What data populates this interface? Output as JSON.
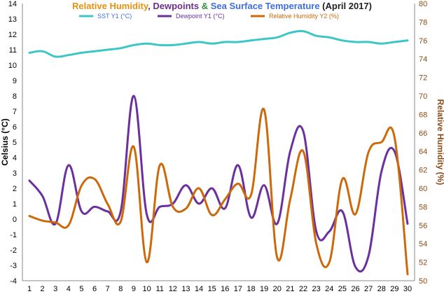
{
  "chart_data": {
    "type": "line",
    "title_parts": [
      {
        "text": "Relative Humidity",
        "color": "#e39312"
      },
      {
        "text": ", ",
        "color": "#6b2f8a"
      },
      {
        "text": "Dewpoints",
        "color": "#6b2f8a"
      },
      {
        "text": " & ",
        "color": "#3b8e3b"
      },
      {
        "text": "Sea Surface Temperature",
        "color": "#3f6ee0"
      },
      {
        "text": " (April 2017)",
        "color": "#222222"
      }
    ],
    "xlabel": "",
    "ylabel": "Celsius (°C)",
    "y2label": "Relative Humidity (%)",
    "x": [
      1,
      2,
      3,
      4,
      5,
      6,
      7,
      8,
      9,
      10,
      11,
      12,
      13,
      14,
      15,
      16,
      17,
      18,
      19,
      20,
      21,
      22,
      23,
      24,
      25,
      26,
      27,
      28,
      29,
      30
    ],
    "xlim": [
      1,
      30
    ],
    "ylim": [
      -4,
      14
    ],
    "y2lim": [
      50,
      80
    ],
    "yticks": [
      -4,
      -3,
      -2,
      -1,
      0,
      1,
      2,
      3,
      4,
      5,
      6,
      7,
      8,
      9,
      10,
      11,
      12,
      13,
      14
    ],
    "y2ticks": [
      50,
      52,
      54,
      56,
      58,
      60,
      62,
      64,
      66,
      68,
      70,
      72,
      74,
      76,
      78,
      80
    ],
    "grid": false,
    "legend_position": "top",
    "series": [
      {
        "name": "SST Y1 (°C)",
        "axis": "y1",
        "color": "#3dc6c6",
        "legend_color": "#3f6ee0",
        "values": [
          10.8,
          10.9,
          10.55,
          10.65,
          10.8,
          10.9,
          11.0,
          11.1,
          11.3,
          11.4,
          11.3,
          11.3,
          11.4,
          11.5,
          11.4,
          11.5,
          11.5,
          11.6,
          11.7,
          11.8,
          12.1,
          12.2,
          11.9,
          11.8,
          11.6,
          11.5,
          11.5,
          11.4,
          11.5,
          11.6
        ]
      },
      {
        "name": "Dewpoint Y1 (°C)",
        "axis": "y1",
        "color": "#6b2f9e",
        "legend_color": "#6b2f9e",
        "values": [
          2.5,
          1.5,
          -0.3,
          3.5,
          0.5,
          0.8,
          0.5,
          0.5,
          8.0,
          0.3,
          0.8,
          1.0,
          2.2,
          1.0,
          2.0,
          0.7,
          3.5,
          0.1,
          2.2,
          -0.3,
          4.4,
          5.7,
          -0.8,
          -0.8,
          0.5,
          -3.1,
          -2.4,
          3.1,
          4.4,
          -0.3
        ]
      },
      {
        "name": "Relative Humidity Y2 (%)",
        "axis": "y2",
        "color": "#cc6a0a",
        "legend_color": "#cc6a0a",
        "values": [
          57.0,
          56.5,
          56.3,
          56.0,
          60.3,
          61.0,
          58.3,
          56.4,
          64.5,
          52.0,
          62.5,
          58.0,
          57.8,
          60.0,
          57.1,
          58.8,
          60.5,
          59.3,
          68.5,
          52.5,
          58.8,
          64.0,
          54.0,
          52.0,
          61.0,
          57.2,
          63.9,
          65.0,
          65.5,
          50.7
        ]
      }
    ]
  }
}
